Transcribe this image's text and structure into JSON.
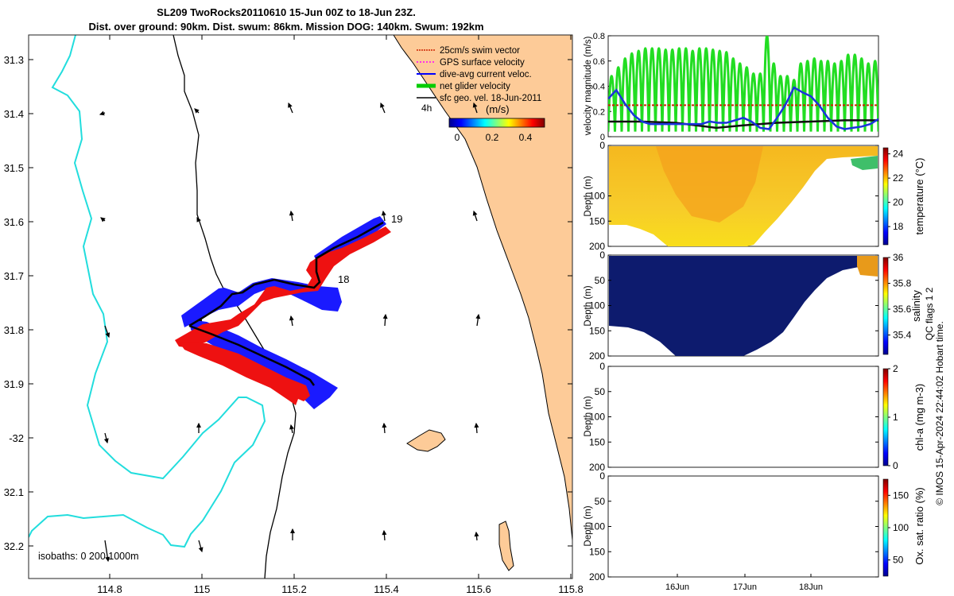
{
  "header": {
    "title_line1": "SL209 TwoRocks20110610 15-Jun 00Z to 18-Jun 23Z.",
    "title_line2": "Dist. over ground: 90km. Dist. swum: 86km. Mission DOG: 140km. Swum: 192km"
  },
  "map": {
    "lon_ticks": [
      "114.8",
      "115",
      "115.2",
      "115.4",
      "115.6",
      "115.8"
    ],
    "lat_ticks": [
      "31.3",
      "31.4",
      "31.5",
      "31.6",
      "31.7",
      "31.8",
      "31.9",
      "-32",
      "32.1",
      "32.2"
    ],
    "isobaths_label": "isobaths: 0   200  1000m",
    "day_labels": [
      "19",
      "18"
    ],
    "time_marker": "4h",
    "legend": {
      "items": [
        {
          "label": "25cm/s swim vector",
          "color": "#cc2200"
        },
        {
          "label": "GPS surface velocity",
          "color": "#ff00ff"
        },
        {
          "label": "dive-avg current veloc.",
          "color": "#0000ff"
        },
        {
          "label": "net glider velocity",
          "color": "#00cc00"
        },
        {
          "label": "sfc geo. vel. 18-Jun-2011",
          "color": "#000000"
        }
      ],
      "colorbar_title": "(m/s)",
      "colorbar_ticks": [
        "0",
        "0.2",
        "0.4"
      ]
    }
  },
  "chart_data": [
    {
      "type": "line",
      "title": "",
      "xlabel": "",
      "ylabel": "velocity magnitude (m/s)",
      "ylim": [
        0,
        0.8
      ],
      "yticks": [
        "0",
        "0.2",
        "0.4",
        "0.6",
        "0.8"
      ],
      "xlim": [
        15.0,
        19.0
      ],
      "series": [
        {
          "name": "net glider velocity",
          "color": "#22dd22",
          "x": [
            15.05,
            15.15,
            15.25,
            15.35,
            15.45,
            15.55,
            15.65,
            15.75,
            15.85,
            15.95,
            16.05,
            16.15,
            16.25,
            16.35,
            16.45,
            16.55,
            16.65,
            16.75,
            16.85,
            16.95,
            17.05,
            17.15,
            17.25,
            17.35,
            17.45,
            17.55,
            17.65,
            17.75,
            17.85,
            17.95,
            18.05,
            18.15,
            18.25,
            18.35,
            18.45,
            18.55,
            18.65,
            18.75,
            18.85,
            18.95
          ],
          "peaks": [
            0.48,
            0.55,
            0.62,
            0.66,
            0.68,
            0.7,
            0.7,
            0.7,
            0.69,
            0.69,
            0.7,
            0.7,
            0.68,
            0.7,
            0.7,
            0.69,
            0.68,
            0.67,
            0.62,
            0.58,
            0.55,
            0.5,
            0.5,
            0.8,
            0.58,
            0.48,
            0.48,
            0.45,
            0.58,
            0.6,
            0.62,
            0.6,
            0.6,
            0.58,
            0.6,
            0.65,
            0.65,
            0.62,
            0.58,
            0.6
          ]
        },
        {
          "name": "dive-avg current veloc.",
          "color": "#1a33dd",
          "x": [
            15.0,
            15.12,
            15.25,
            15.38,
            15.5,
            15.62,
            15.75,
            15.88,
            16.0,
            16.12,
            16.25,
            16.38,
            16.5,
            16.62,
            16.75,
            16.88,
            17.0,
            17.12,
            17.25,
            17.38,
            17.5,
            17.62,
            17.75,
            17.88,
            18.0,
            18.12,
            18.25,
            18.38,
            18.5,
            18.62,
            18.75,
            18.88,
            19.0
          ],
          "y": [
            0.3,
            0.37,
            0.26,
            0.17,
            0.12,
            0.1,
            0.1,
            0.1,
            0.1,
            0.1,
            0.1,
            0.1,
            0.12,
            0.11,
            0.11,
            0.13,
            0.15,
            0.12,
            0.07,
            0.06,
            0.15,
            0.25,
            0.39,
            0.35,
            0.32,
            0.25,
            0.15,
            0.08,
            0.06,
            0.07,
            0.08,
            0.1,
            0.14
          ]
        },
        {
          "name": "25cm/s swim vector",
          "color": "#cc2200",
          "x": [
            15.0,
            19.0
          ],
          "y": [
            0.25,
            0.25
          ]
        },
        {
          "name": "sfc geo. vel.",
          "color": "#111111",
          "x": [
            15.0,
            15.5,
            16.0,
            16.3,
            16.6,
            17.0,
            17.5,
            18.0,
            18.5,
            19.0
          ],
          "y": [
            0.12,
            0.12,
            0.11,
            0.09,
            0.07,
            0.09,
            0.11,
            0.12,
            0.13,
            0.13
          ]
        }
      ]
    },
    {
      "type": "heatmap",
      "ylabel": "Depth (m)",
      "yticks": [
        "0",
        "100",
        "150",
        "200"
      ],
      "colorbar_label": "temperature (°C)",
      "colorbar_ticks": [
        "24",
        "22",
        "20",
        "18"
      ],
      "clim": [
        16.5,
        24.5
      ]
    },
    {
      "type": "heatmap",
      "ylabel": "Depth (m)",
      "yticks": [
        "0",
        "50",
        "100",
        "150",
        "200"
      ],
      "colorbar_label": "salinity",
      "colorbar_ticks": [
        "36",
        "35.8",
        "35.6",
        "35.4"
      ],
      "clim": [
        35.25,
        36
      ]
    },
    {
      "type": "heatmap",
      "ylabel": "Depth (m)",
      "yticks": [
        "0",
        "50",
        "100",
        "150",
        "200"
      ],
      "colorbar_label": "chl-a (mg m-3)",
      "colorbar_ticks": [
        "2",
        "1",
        "0"
      ],
      "clim": [
        0,
        2
      ]
    },
    {
      "type": "heatmap",
      "ylabel": "Depth (m)",
      "yticks": [
        "0",
        "50",
        "100",
        "150",
        "200"
      ],
      "colorbar_label": "Ox. sat. ratio (%)",
      "colorbar_ticks": [
        "150",
        "100",
        "50"
      ],
      "clim": [
        25,
        175
      ],
      "xticks": [
        "16Jun",
        "17Jun",
        "18Jun"
      ]
    }
  ],
  "qc_label": "QC flags 1  2",
  "footer_text": "© IMOS 15-Apr-2024 22:44:02 Hobart time."
}
